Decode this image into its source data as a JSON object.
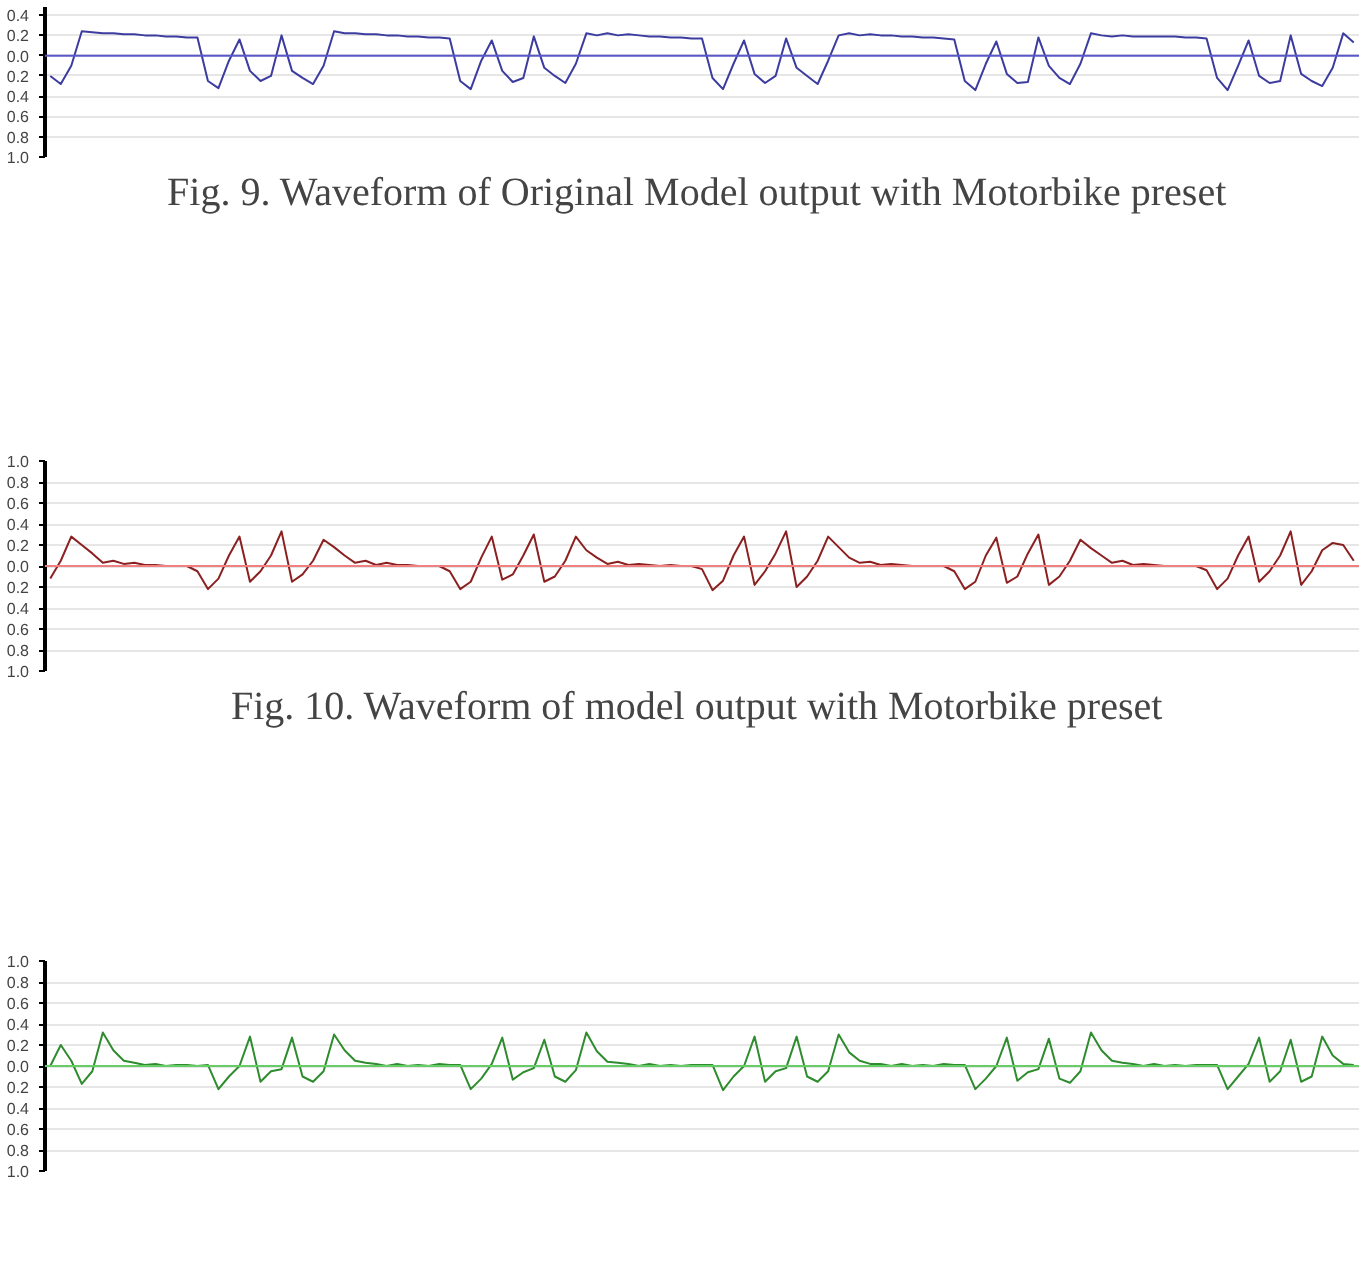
{
  "chart_data": [
    {
      "type": "line",
      "title": "Fig. 9.  Waveform of Original Model output with Motorbike preset",
      "categories": [
        null,
        null,
        null,
        null,
        null,
        null,
        null,
        null,
        null,
        null,
        null,
        null,
        null,
        null,
        null,
        null,
        null,
        null,
        null,
        null,
        null,
        null,
        null,
        null,
        null,
        null,
        null,
        null,
        null,
        null,
        null,
        null,
        null,
        null,
        null,
        null,
        null,
        null,
        null,
        null,
        null,
        null,
        null,
        null,
        null,
        null,
        null,
        null,
        null,
        null,
        null,
        null,
        null,
        null,
        null,
        null,
        null,
        null,
        null,
        null,
        null,
        null,
        null,
        null,
        null,
        null,
        null,
        null,
        null,
        null,
        null,
        null,
        null,
        null,
        null,
        null,
        null,
        null,
        null,
        null,
        null,
        null,
        null,
        null,
        null,
        null,
        null,
        null,
        null,
        null,
        null,
        null,
        null,
        null,
        null,
        null,
        null,
        null,
        null,
        null,
        null,
        null,
        null,
        null,
        null,
        null,
        null,
        null,
        null,
        null,
        null,
        null,
        null,
        null,
        null,
        null,
        null,
        null,
        null,
        null,
        null,
        null,
        null,
        null,
        null
      ],
      "series": [
        {
          "color": "#3c3ca0",
          "values": [
            -0.2,
            -0.28,
            -0.1,
            0.24,
            0.23,
            0.22,
            0.22,
            0.21,
            0.21,
            0.2,
            0.2,
            0.19,
            0.19,
            0.18,
            0.18,
            -0.25,
            -0.32,
            -0.05,
            0.16,
            -0.15,
            -0.25,
            -0.2,
            0.2,
            -0.15,
            -0.22,
            -0.28,
            -0.1,
            0.24,
            0.22,
            0.22,
            0.21,
            0.21,
            0.2,
            0.2,
            0.19,
            0.19,
            0.18,
            0.18,
            0.17,
            -0.25,
            -0.33,
            -0.05,
            0.15,
            -0.15,
            -0.26,
            -0.22,
            0.19,
            -0.12,
            -0.2,
            -0.27,
            -0.08,
            0.22,
            0.2,
            0.22,
            0.2,
            0.21,
            0.2,
            0.19,
            0.19,
            0.18,
            0.18,
            0.17,
            0.17,
            -0.22,
            -0.33,
            -0.08,
            0.15,
            -0.18,
            -0.27,
            -0.2,
            0.17,
            -0.12,
            -0.2,
            -0.28,
            -0.05,
            0.2,
            0.22,
            0.2,
            0.21,
            0.2,
            0.2,
            0.19,
            0.19,
            0.18,
            0.18,
            0.17,
            0.16,
            -0.25,
            -0.34,
            -0.08,
            0.14,
            -0.18,
            -0.27,
            -0.26,
            0.18,
            -0.1,
            -0.22,
            -0.28,
            -0.08,
            0.22,
            0.2,
            0.19,
            0.2,
            0.19,
            0.19,
            0.19,
            0.19,
            0.19,
            0.18,
            0.18,
            0.17,
            -0.22,
            -0.34,
            -0.1,
            0.15,
            -0.2,
            -0.27,
            -0.25,
            0.2,
            -0.18,
            -0.25,
            -0.3,
            -0.12,
            0.22,
            0.13
          ]
        }
      ],
      "ylim": [
        -1.0,
        0.48
      ],
      "yticks": [
        {
          "value": -1.0,
          "label": "1.0"
        },
        {
          "value": -0.8,
          "label": "0.8"
        },
        {
          "value": -0.6,
          "label": "0.6"
        },
        {
          "value": -0.4,
          "label": "0.4"
        },
        {
          "value": -0.2,
          "label": "0.2"
        },
        {
          "value": 0.0,
          "label": "0.0"
        },
        0.2,
        0.4
      ],
      "ref_lines": [
        {
          "axis": "y",
          "value": 0,
          "color": "#5858c8"
        }
      ],
      "grid": "y",
      "tick_labels": "y",
      "marker": "none",
      "line_style": "solid"
    },
    {
      "type": "line",
      "title": "Fig. 10.  Waveform of model output with Motorbike preset",
      "categories": [
        null,
        null,
        null,
        null,
        null,
        null,
        null,
        null,
        null,
        null,
        null,
        null,
        null,
        null,
        null,
        null,
        null,
        null,
        null,
        null,
        null,
        null,
        null,
        null,
        null,
        null,
        null,
        null,
        null,
        null,
        null,
        null,
        null,
        null,
        null,
        null,
        null,
        null,
        null,
        null,
        null,
        null,
        null,
        null,
        null,
        null,
        null,
        null,
        null,
        null,
        null,
        null,
        null,
        null,
        null,
        null,
        null,
        null,
        null,
        null,
        null,
        null,
        null,
        null,
        null,
        null,
        null,
        null,
        null,
        null,
        null,
        null,
        null,
        null,
        null,
        null,
        null,
        null,
        null,
        null,
        null,
        null,
        null,
        null,
        null,
        null,
        null,
        null,
        null,
        null,
        null,
        null,
        null,
        null,
        null,
        null,
        null,
        null,
        null,
        null,
        null,
        null,
        null,
        null,
        null,
        null,
        null,
        null,
        null,
        null,
        null,
        null,
        null,
        null,
        null,
        null,
        null,
        null,
        null,
        null,
        null,
        null,
        null,
        null,
        null
      ],
      "series": [
        {
          "color": "#8b2020",
          "values": [
            -0.12,
            0.05,
            0.28,
            0.2,
            0.12,
            0.03,
            0.05,
            0.02,
            0.03,
            0.01,
            0.01,
            0.0,
            0.0,
            0.0,
            -0.05,
            -0.22,
            -0.12,
            0.1,
            0.28,
            -0.15,
            -0.05,
            0.1,
            0.33,
            -0.15,
            -0.08,
            0.05,
            0.25,
            0.18,
            0.1,
            0.03,
            0.05,
            0.01,
            0.03,
            0.01,
            0.01,
            0.0,
            0.0,
            0.0,
            -0.05,
            -0.22,
            -0.15,
            0.08,
            0.28,
            -0.13,
            -0.08,
            0.1,
            0.3,
            -0.15,
            -0.1,
            0.05,
            0.28,
            0.15,
            0.08,
            0.02,
            0.04,
            0.01,
            0.02,
            0.01,
            0.0,
            0.01,
            0.0,
            0.0,
            -0.03,
            -0.23,
            -0.14,
            0.1,
            0.28,
            -0.18,
            -0.05,
            0.12,
            0.33,
            -0.2,
            -0.1,
            0.05,
            0.28,
            0.18,
            0.08,
            0.03,
            0.04,
            0.01,
            0.02,
            0.01,
            0.0,
            0.0,
            0.0,
            0.0,
            -0.05,
            -0.22,
            -0.15,
            0.1,
            0.27,
            -0.16,
            -0.1,
            0.12,
            0.3,
            -0.18,
            -0.1,
            0.05,
            0.25,
            0.17,
            0.1,
            0.03,
            0.05,
            0.01,
            0.02,
            0.01,
            0.0,
            0.0,
            0.0,
            0.0,
            -0.04,
            -0.22,
            -0.12,
            0.1,
            0.28,
            -0.15,
            -0.05,
            0.1,
            0.33,
            -0.18,
            -0.05,
            0.15,
            0.22,
            0.2,
            0.05
          ]
        }
      ],
      "ylim": [
        -1.0,
        1.0
      ],
      "yticks": [
        {
          "value": -1.0,
          "label": "1.0"
        },
        {
          "value": -0.8,
          "label": "0.8"
        },
        {
          "value": -0.6,
          "label": "0.6"
        },
        {
          "value": -0.4,
          "label": "0.4"
        },
        {
          "value": -0.2,
          "label": "0.2"
        },
        {
          "value": 0.0,
          "label": "0.0"
        },
        0.2,
        0.4,
        0.6,
        0.8,
        {
          "value": 1.0,
          "label": "1.0"
        }
      ],
      "ref_lines": [
        {
          "axis": "y",
          "value": 0,
          "color": "#f08080"
        }
      ],
      "grid": "y",
      "tick_labels": "y",
      "marker": "none",
      "line_style": "solid"
    },
    {
      "type": "line",
      "categories": [
        null,
        null,
        null,
        null,
        null,
        null,
        null,
        null,
        null,
        null,
        null,
        null,
        null,
        null,
        null,
        null,
        null,
        null,
        null,
        null,
        null,
        null,
        null,
        null,
        null,
        null,
        null,
        null,
        null,
        null,
        null,
        null,
        null,
        null,
        null,
        null,
        null,
        null,
        null,
        null,
        null,
        null,
        null,
        null,
        null,
        null,
        null,
        null,
        null,
        null,
        null,
        null,
        null,
        null,
        null,
        null,
        null,
        null,
        null,
        null,
        null,
        null,
        null,
        null,
        null,
        null,
        null,
        null,
        null,
        null,
        null,
        null,
        null,
        null,
        null,
        null,
        null,
        null,
        null,
        null,
        null,
        null,
        null,
        null,
        null,
        null,
        null,
        null,
        null,
        null,
        null,
        null,
        null,
        null,
        null,
        null,
        null,
        null,
        null,
        null,
        null,
        null,
        null,
        null,
        null,
        null,
        null,
        null,
        null,
        null,
        null,
        null,
        null,
        null,
        null,
        null,
        null,
        null,
        null,
        null,
        null,
        null,
        null,
        null,
        null
      ],
      "series": [
        {
          "color": "#2e8b2e",
          "values": [
            0.0,
            0.2,
            0.05,
            -0.17,
            -0.05,
            0.32,
            0.15,
            0.05,
            0.03,
            0.01,
            0.02,
            0.0,
            0.01,
            0.01,
            0.0,
            0.01,
            -0.22,
            -0.1,
            0.0,
            0.28,
            -0.15,
            -0.05,
            -0.03,
            0.27,
            -0.1,
            -0.15,
            -0.05,
            0.3,
            0.15,
            0.05,
            0.03,
            0.02,
            0.0,
            0.02,
            0.0,
            0.01,
            0.0,
            0.02,
            0.01,
            0.01,
            -0.22,
            -0.12,
            0.02,
            0.27,
            -0.13,
            -0.06,
            -0.02,
            0.25,
            -0.1,
            -0.15,
            -0.04,
            0.32,
            0.14,
            0.04,
            0.03,
            0.02,
            0.0,
            0.02,
            0.0,
            0.01,
            0.0,
            0.01,
            0.01,
            0.01,
            -0.23,
            -0.1,
            0.0,
            0.28,
            -0.15,
            -0.05,
            -0.02,
            0.28,
            -0.1,
            -0.15,
            -0.05,
            0.3,
            0.13,
            0.05,
            0.02,
            0.02,
            0.0,
            0.02,
            0.0,
            0.01,
            0.0,
            0.02,
            0.01,
            0.01,
            -0.22,
            -0.12,
            0.0,
            0.27,
            -0.14,
            -0.06,
            -0.03,
            0.26,
            -0.12,
            -0.16,
            -0.05,
            0.32,
            0.15,
            0.05,
            0.03,
            0.02,
            0.0,
            0.02,
            0.0,
            0.01,
            0.0,
            0.01,
            0.01,
            0.01,
            -0.22,
            -0.1,
            0.02,
            0.27,
            -0.15,
            -0.05,
            0.25,
            -0.15,
            -0.1,
            0.28,
            0.1,
            0.02,
            0.01
          ]
        }
      ],
      "ylim": [
        -1.0,
        1.0
      ],
      "yticks": [
        {
          "value": -1.0,
          "label": "1.0"
        },
        {
          "value": -0.8,
          "label": "0.8"
        },
        {
          "value": -0.6,
          "label": "0.6"
        },
        {
          "value": -0.4,
          "label": "0.4"
        },
        {
          "value": -0.2,
          "label": "0.2"
        },
        {
          "value": 0.0,
          "label": "0.0"
        },
        0.2,
        0.4,
        0.6,
        0.8,
        {
          "value": 1.0,
          "label": "1.0"
        }
      ],
      "ref_lines": [
        {
          "axis": "y",
          "value": 0,
          "color": "#66cc66"
        }
      ],
      "grid": "y",
      "tick_labels": "y",
      "marker": "none",
      "line_style": "solid"
    }
  ]
}
